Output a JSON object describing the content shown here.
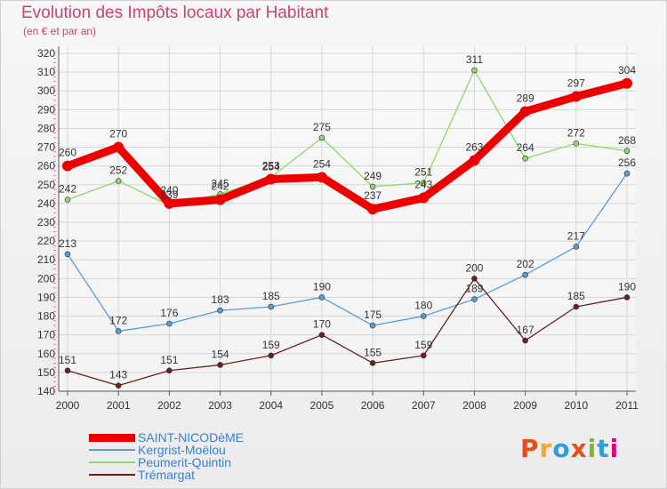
{
  "title": "Evolution des Impôts locaux par Habitant",
  "subtitle": "(en € et par an)",
  "logo": {
    "text": "Proxiti",
    "colors": [
      "#e84e1b",
      "#f6a81c",
      "#2a9fd8",
      "#e84e1b",
      "#7fb82a",
      "#2a9fd8",
      "#e6007e"
    ]
  },
  "chart_data": {
    "type": "line",
    "title": "Evolution des Impôts locaux par Habitant",
    "subtitle": "(en € et par an)",
    "x": [
      "2000",
      "2001",
      "2002",
      "2003",
      "2004",
      "2005",
      "2006",
      "2007",
      "2008",
      "2009",
      "2010",
      "2011"
    ],
    "ylim": [
      140,
      320
    ],
    "yticks": [
      140,
      150,
      160,
      170,
      180,
      190,
      200,
      210,
      220,
      230,
      240,
      250,
      260,
      270,
      280,
      290,
      300,
      310,
      320
    ],
    "grid": true,
    "legend_position": "bottom-left",
    "series": [
      {
        "name": "SAINT-NICODèME",
        "color": "#ee0000",
        "thick": true,
        "values": [
          260,
          270,
          240,
          242,
          253,
          254,
          237,
          243,
          263,
          289,
          297,
          304
        ]
      },
      {
        "name": "Kergrist-Moëlou",
        "color": "#5b9bd5",
        "values": [
          213,
          172,
          176,
          183,
          185,
          190,
          175,
          180,
          189,
          202,
          217,
          256
        ]
      },
      {
        "name": "Peumerit-Quintin",
        "color": "#8dd86a",
        "values": [
          242,
          252,
          239,
          245,
          254,
          275,
          249,
          251,
          311,
          264,
          272,
          268
        ]
      },
      {
        "name": "Trémargat",
        "color": "#6b1f1f",
        "values": [
          151,
          143,
          151,
          154,
          159,
          170,
          155,
          159,
          200,
          167,
          185,
          190
        ]
      }
    ]
  }
}
